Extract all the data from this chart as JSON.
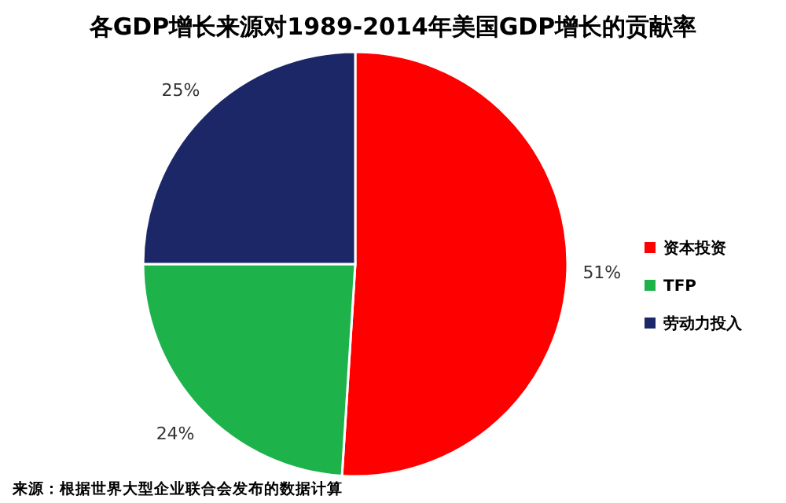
{
  "chart_data": {
    "type": "pie",
    "title": "各GDP增长来源对1989-2014年美国GDP增长的贡献率",
    "categories": [
      "资本投资",
      "TFP",
      "劳动力投入"
    ],
    "values": [
      51,
      24,
      25
    ],
    "colors": [
      "#ff0000",
      "#1eb24b",
      "#1b2766"
    ],
    "value_labels": [
      "51%",
      "24%",
      "25%"
    ],
    "legend": "right",
    "annotations": [
      "来源：根据世界大型企业联合会发布的数据计算"
    ]
  }
}
